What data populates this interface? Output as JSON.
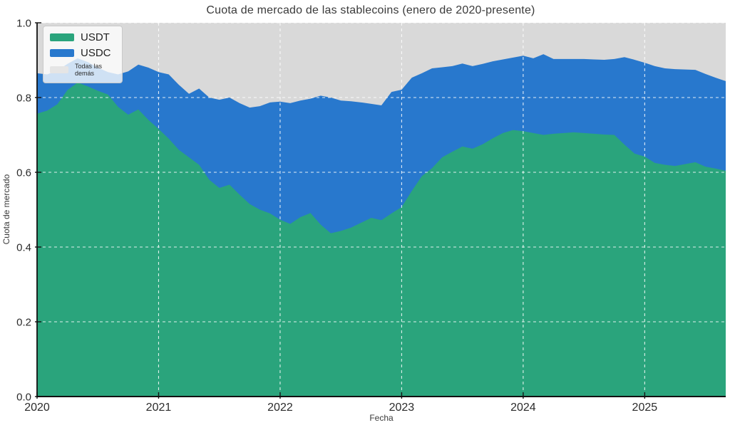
{
  "title": "Cuota de mercado de las stablecoins (enero de 2020-presente)",
  "chart_data": {
    "type": "area",
    "stacked": true,
    "title": "Cuota de mercado de las stablecoins (enero de 2020-presente)",
    "xlabel": "Fecha",
    "ylabel": "Cuota de mercado",
    "ylim": [
      0.0,
      1.0
    ],
    "yticks": [
      0.0,
      0.2,
      0.4,
      0.6,
      0.8,
      1.0
    ],
    "xtick_labels": [
      "2020",
      "2021",
      "2022",
      "2023",
      "2024",
      "2025"
    ],
    "grid": true,
    "grid_style": "dashed-white",
    "legend_position": "upper-left",
    "plot_bg": "#d9d9d9",
    "x": [
      "2020-01",
      "2020-02",
      "2020-03",
      "2020-04",
      "2020-05",
      "2020-06",
      "2020-07",
      "2020-08",
      "2020-09",
      "2020-10",
      "2020-11",
      "2020-12",
      "2021-01",
      "2021-02",
      "2021-03",
      "2021-04",
      "2021-05",
      "2021-06",
      "2021-07",
      "2021-08",
      "2021-09",
      "2021-10",
      "2021-11",
      "2021-12",
      "2022-01",
      "2022-02",
      "2022-03",
      "2022-04",
      "2022-05",
      "2022-06",
      "2022-07",
      "2022-08",
      "2022-09",
      "2022-10",
      "2022-11",
      "2022-12",
      "2023-01",
      "2023-02",
      "2023-03",
      "2023-04",
      "2023-05",
      "2023-06",
      "2023-07",
      "2023-08",
      "2023-09",
      "2023-10",
      "2023-11",
      "2023-12",
      "2024-01",
      "2024-02",
      "2024-03",
      "2024-04",
      "2024-05",
      "2024-06",
      "2024-07",
      "2024-08",
      "2024-09",
      "2024-10",
      "2024-11",
      "2024-12",
      "2025-01",
      "2025-02",
      "2025-03",
      "2025-04",
      "2025-05",
      "2025-06",
      "2025-07",
      "2025-08",
      "2025-09"
    ],
    "series": [
      {
        "name": "USDT",
        "color": "#2aa47c",
        "values": [
          0.757,
          0.765,
          0.782,
          0.82,
          0.84,
          0.83,
          0.818,
          0.808,
          0.775,
          0.754,
          0.768,
          0.74,
          0.716,
          0.69,
          0.66,
          0.64,
          0.62,
          0.58,
          0.558,
          0.567,
          0.54,
          0.515,
          0.5,
          0.49,
          0.473,
          0.462,
          0.48,
          0.491,
          0.46,
          0.437,
          0.443,
          0.452,
          0.465,
          0.478,
          0.472,
          0.49,
          0.507,
          0.55,
          0.59,
          0.611,
          0.64,
          0.655,
          0.669,
          0.663,
          0.675,
          0.691,
          0.705,
          0.713,
          0.71,
          0.705,
          0.7,
          0.703,
          0.705,
          0.707,
          0.705,
          0.703,
          0.701,
          0.7,
          0.674,
          0.65,
          0.642,
          0.625,
          0.62,
          0.617,
          0.622,
          0.627,
          0.615,
          0.61,
          0.604
        ]
      },
      {
        "name": "USDC",
        "color": "#2878cd",
        "values": [
          0.108,
          0.097,
          0.09,
          0.07,
          0.065,
          0.065,
          0.062,
          0.06,
          0.087,
          0.116,
          0.12,
          0.14,
          0.152,
          0.172,
          0.174,
          0.17,
          0.204,
          0.22,
          0.236,
          0.233,
          0.245,
          0.258,
          0.277,
          0.297,
          0.316,
          0.323,
          0.312,
          0.306,
          0.345,
          0.363,
          0.349,
          0.338,
          0.322,
          0.305,
          0.307,
          0.325,
          0.314,
          0.303,
          0.275,
          0.267,
          0.241,
          0.229,
          0.222,
          0.221,
          0.215,
          0.206,
          0.197,
          0.194,
          0.202,
          0.2,
          0.216,
          0.2,
          0.198,
          0.196,
          0.198,
          0.199,
          0.2,
          0.203,
          0.234,
          0.251,
          0.251,
          0.259,
          0.258,
          0.259,
          0.253,
          0.247,
          0.248,
          0.243,
          0.24
        ]
      },
      {
        "name": "Todas las demás",
        "color": "#d9d9d9",
        "values": [
          0.135,
          0.138,
          0.128,
          0.11,
          0.095,
          0.105,
          0.12,
          0.132,
          0.138,
          0.13,
          0.112,
          0.12,
          0.132,
          0.138,
          0.166,
          0.19,
          0.176,
          0.2,
          0.206,
          0.2,
          0.215,
          0.227,
          0.223,
          0.213,
          0.211,
          0.215,
          0.208,
          0.203,
          0.195,
          0.2,
          0.208,
          0.21,
          0.213,
          0.217,
          0.221,
          0.185,
          0.179,
          0.147,
          0.135,
          0.122,
          0.119,
          0.116,
          0.109,
          0.116,
          0.11,
          0.103,
          0.098,
          0.093,
          0.088,
          0.095,
          0.084,
          0.097,
          0.097,
          0.097,
          0.097,
          0.098,
          0.099,
          0.097,
          0.092,
          0.099,
          0.107,
          0.116,
          0.122,
          0.124,
          0.125,
          0.126,
          0.137,
          0.147,
          0.156
        ]
      }
    ],
    "legend_swatch_colors": {
      "others_visible": "#e5e5e5"
    }
  }
}
